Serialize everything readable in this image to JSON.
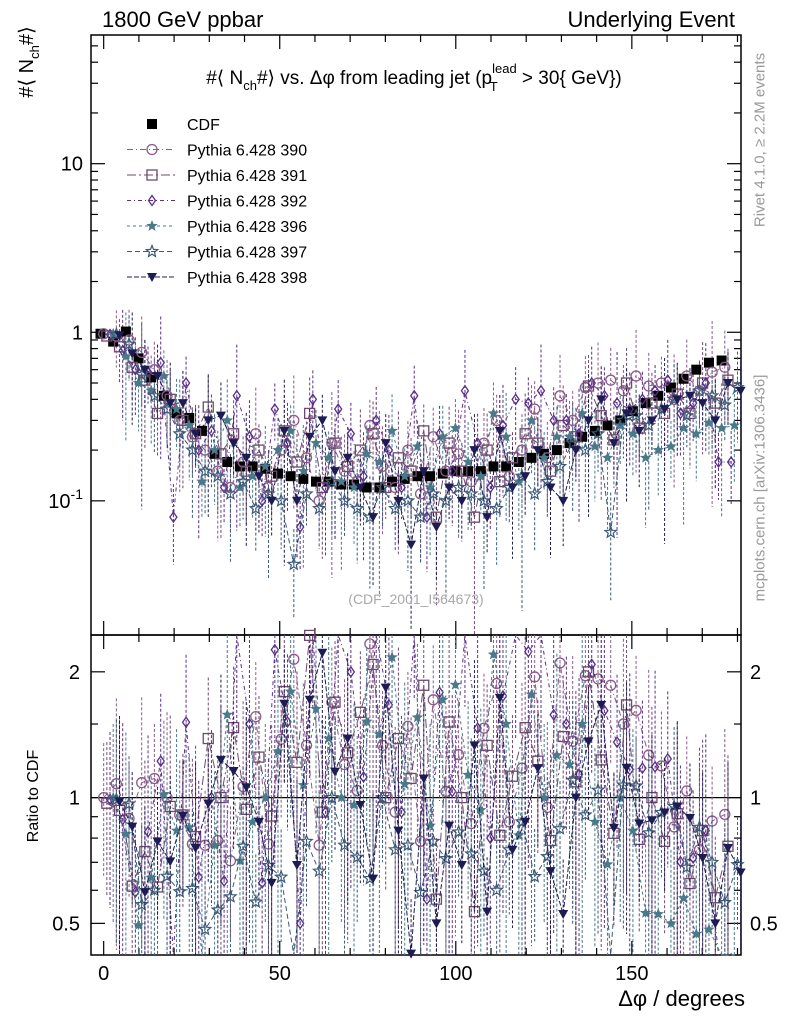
{
  "header": {
    "left": "1800 GeV ppbar",
    "right": "Underlying Event"
  },
  "side_notes": {
    "rivet": "Rivet 4.1.0, ≥ 2.2M events",
    "mcplots": "mcplots.cern.ch [arXiv:1306.3436]"
  },
  "watermark": "(CDF_2001_I564673)",
  "colors": {
    "cdf": "#000000",
    "p390": "#8c5a8c",
    "p391": "#6e4a6e",
    "p392": "#5a2f8a",
    "p396": "#4a7a8a",
    "p397": "#3a5a78",
    "p398": "#1c1c52"
  },
  "chart_data": [
    {
      "type": "scatter",
      "panel": "main",
      "title": "#⟨ N_ch #⟩ vs. Δφ from leading jet  (p_T^lead > 30{ GeV})",
      "title_parts": {
        "prefix": "#⟨ N",
        "sub1": "ch",
        "mid": "#⟩ vs. Δφ from leading jet  (p",
        "sup": "lead",
        "sub2": "T",
        "suffix": " > 30{ GeV})"
      },
      "ylabel": "#⟨ N_ch #⟩",
      "ylabel_parts": {
        "prefix": "#⟨ N",
        "sub": "ch",
        "suffix": "#⟩"
      },
      "xlabel": "Δφ / degrees",
      "yscale": "log",
      "xlim": [
        -3.6,
        181
      ],
      "ylim": [
        0.016,
        58
      ],
      "y_ticks": [
        {
          "v": 10,
          "label": "10"
        },
        {
          "v": 1,
          "label": "1"
        },
        {
          "v": 0.1,
          "label": "10^-1"
        }
      ],
      "legend": {
        "position": "top-left",
        "entries": [
          {
            "label": "CDF",
            "style": "square"
          },
          {
            "label": "Pythia 6.428 390",
            "style": "circle"
          },
          {
            "label": "Pythia 6.428 391",
            "style": "square-open"
          },
          {
            "label": "Pythia 6.428 392",
            "style": "diamond"
          },
          {
            "label": "Pythia 6.428 396",
            "style": "star"
          },
          {
            "label": "Pythia 6.428 397",
            "style": "star-open"
          },
          {
            "label": "Pythia 6.428 398",
            "style": "triangle-down"
          }
        ]
      },
      "x": [
        1.8,
        5.4,
        9,
        12.6,
        16.2,
        19.8,
        23.4,
        27,
        30.6,
        34.2,
        37.8,
        41.4,
        45,
        48.6,
        52.2,
        55.8,
        59.4,
        63,
        66.6,
        70.2,
        73.8,
        77.4,
        81,
        84.6,
        88.2,
        91.8,
        95.4,
        99,
        102.6,
        106.2,
        109.8,
        113.4,
        117,
        120.6,
        124.2,
        127.8,
        131.4,
        135,
        138.6,
        142.2,
        145.8,
        149.4,
        153,
        156.6,
        160.2,
        163.8,
        167.4,
        171,
        174.6,
        178.2
      ],
      "series": [
        {
          "name": "CDF",
          "values": [
            0.98,
            0.88,
            1.01,
            0.7,
            0.54,
            0.42,
            0.33,
            0.31,
            0.26,
            0.19,
            0.17,
            0.16,
            0.16,
            0.155,
            0.145,
            0.14,
            0.135,
            0.13,
            0.13,
            0.125,
            0.125,
            0.12,
            0.12,
            0.13,
            0.135,
            0.14,
            0.14,
            0.145,
            0.15,
            0.15,
            0.15,
            0.16,
            0.16,
            0.17,
            0.18,
            0.19,
            0.2,
            0.22,
            0.24,
            0.26,
            0.28,
            0.3,
            0.34,
            0.38,
            0.42,
            0.47,
            0.53,
            0.6,
            0.66,
            0.68
          ]
        },
        {
          "name": "Pythia 6.428 390",
          "values": [
            0.98,
            0.95,
            0.9,
            0.76,
            0.6,
            0.42,
            0.3,
            0.24,
            0.2,
            0.15,
            0.12,
            0.17,
            0.25,
            0.12,
            0.2,
            0.3,
            0.18,
            0.1,
            0.22,
            0.15,
            0.13,
            0.28,
            0.16,
            0.12,
            0.2,
            0.11,
            0.24,
            0.15,
            0.19,
            0.13,
            0.22,
            0.3,
            0.14,
            0.2,
            0.35,
            0.18,
            0.42,
            0.3,
            0.47,
            0.5,
            0.52,
            0.45,
            0.55,
            0.48,
            0.5,
            0.4,
            0.55,
            0.45,
            0.58,
            0.62
          ]
        },
        {
          "name": "Pythia 6.428 391",
          "values": [
            0.95,
            0.82,
            0.62,
            0.52,
            0.33,
            0.4,
            0.3,
            0.25,
            0.36,
            0.19,
            0.25,
            0.15,
            0.2,
            0.14,
            0.26,
            0.17,
            0.33,
            0.12,
            0.22,
            0.16,
            0.2,
            0.25,
            0.12,
            0.18,
            0.15,
            0.26,
            0.08,
            0.22,
            0.15,
            0.08,
            0.2,
            0.13,
            0.18,
            0.25,
            0.22,
            0.15,
            0.28,
            0.24,
            0.48,
            0.32,
            0.23,
            0.5,
            0.27,
            0.38,
            0.33,
            0.43,
            0.33,
            0.5,
            0.38,
            0.52
          ]
        },
        {
          "name": "Pythia 6.428 392",
          "values": [
            0.97,
            0.78,
            0.6,
            0.58,
            0.66,
            0.08,
            0.5,
            0.2,
            0.26,
            0.12,
            0.42,
            0.24,
            0.1,
            0.35,
            0.22,
            0.07,
            0.4,
            0.12,
            0.35,
            0.25,
            0.14,
            0.3,
            0.2,
            0.12,
            0.42,
            0.08,
            0.25,
            0.15,
            0.45,
            0.22,
            0.12,
            0.28,
            0.4,
            0.38,
            0.45,
            0.3,
            0.3,
            0.25,
            0.5,
            0.42,
            0.38,
            0.35,
            0.4,
            0.45,
            0.52,
            0.33,
            0.38,
            0.5,
            0.17,
            0.17
          ]
        },
        {
          "name": "Pythia 6.428 396",
          "values": [
            0.98,
            0.72,
            0.5,
            0.45,
            0.55,
            0.35,
            0.28,
            0.13,
            0.2,
            0.3,
            0.12,
            0.14,
            0.16,
            0.2,
            0.26,
            0.15,
            0.22,
            0.18,
            0.13,
            0.12,
            0.19,
            0.17,
            0.26,
            0.14,
            0.21,
            0.12,
            0.24,
            0.27,
            0.17,
            0.14,
            0.33,
            0.24,
            0.13,
            0.3,
            0.18,
            0.24,
            0.24,
            0.33,
            0.21,
            0.18,
            0.28,
            0.25,
            0.18,
            0.2,
            0.21,
            0.27,
            0.25,
            0.29,
            0.27,
            0.28
          ]
        },
        {
          "name": "Pythia 6.428 397",
          "values": [
            0.97,
            0.85,
            0.56,
            0.42,
            0.35,
            0.25,
            0.2,
            0.15,
            0.14,
            0.11,
            0.13,
            0.09,
            0.11,
            0.1,
            0.042,
            0.11,
            0.09,
            0.13,
            0.1,
            0.09,
            0.08,
            0.12,
            0.09,
            0.1,
            0.08,
            0.11,
            0.1,
            0.12,
            0.11,
            0.1,
            0.09,
            0.12,
            0.14,
            0.11,
            0.13,
            0.16,
            0.22,
            0.2,
            0.25,
            0.065,
            0.3,
            0.32,
            0.28,
            0.35,
            0.4,
            0.32,
            0.45,
            0.42,
            0.37,
            0.47
          ]
        },
        {
          "name": "Pythia 6.428 398",
          "values": [
            0.96,
            0.75,
            0.6,
            0.55,
            0.38,
            0.38,
            0.25,
            0.3,
            0.32,
            0.22,
            0.18,
            0.14,
            0.1,
            0.26,
            0.1,
            0.24,
            0.3,
            0.15,
            0.18,
            0.12,
            0.08,
            0.22,
            0.1,
            0.055,
            0.15,
            0.07,
            0.12,
            0.1,
            0.2,
            0.08,
            0.26,
            0.12,
            0.14,
            0.2,
            0.12,
            0.1,
            0.2,
            0.3,
            0.4,
            0.22,
            0.33,
            0.26,
            0.3,
            0.35,
            0.4,
            0.42,
            0.38,
            0.3,
            0.5,
            0.45
          ]
        }
      ]
    },
    {
      "type": "scatter",
      "panel": "ratio",
      "ylabel": "Ratio to CDF",
      "xlabel": "Δφ / degrees",
      "yscale": "log",
      "xlim": [
        -3.6,
        181
      ],
      "ylim": [
        0.42,
        2.45
      ],
      "y_ticks": [
        {
          "v": 2,
          "label": "2"
        },
        {
          "v": 1,
          "label": "1"
        },
        {
          "v": 0.5,
          "label": "0.5"
        }
      ],
      "x_ticks": [
        {
          "v": 0,
          "label": "0"
        },
        {
          "v": 50,
          "label": "50"
        },
        {
          "v": 100,
          "label": "100"
        },
        {
          "v": 150,
          "label": "150"
        }
      ],
      "reference_line": 1
    }
  ]
}
